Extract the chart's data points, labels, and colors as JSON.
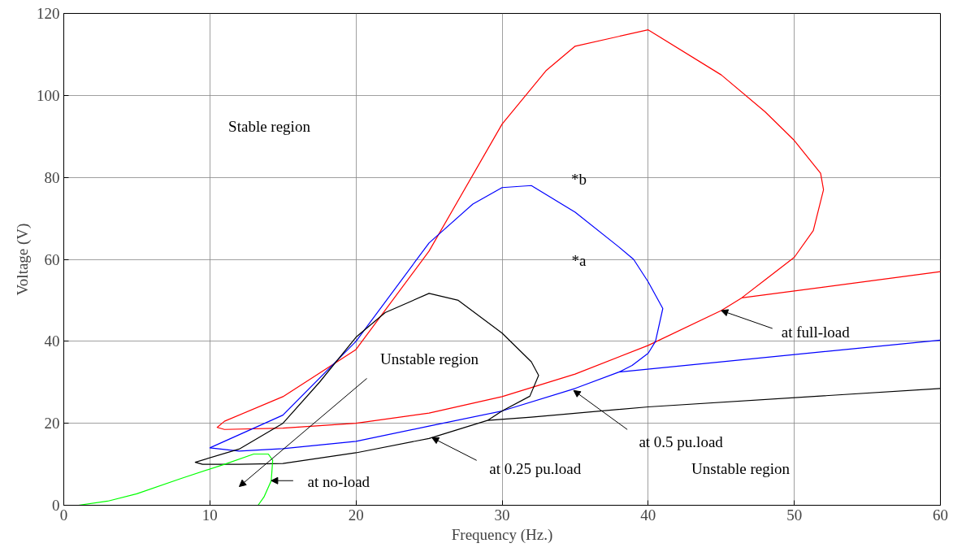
{
  "chart_data": {
    "type": "line",
    "xlabel": "Frequency (Hz.)",
    "ylabel": "Voltage (V)",
    "xlim": [
      0,
      60
    ],
    "ylim": [
      0,
      120
    ],
    "xticks": [
      0,
      10,
      20,
      30,
      40,
      50,
      60
    ],
    "yticks": [
      0,
      20,
      40,
      60,
      80,
      100,
      120
    ],
    "grid": true,
    "line_style": "solid",
    "marker": "none",
    "series": [
      {
        "color": "#ff0000",
        "x": [
          60,
          46.4,
          48,
          50,
          51.3,
          52,
          51.8,
          50,
          48,
          45,
          40,
          35,
          33,
          30,
          25,
          20,
          15,
          11,
          10.5,
          11,
          15,
          20,
          25,
          30,
          35,
          40,
          45,
          46.4
        ],
        "values": [
          57,
          50.6,
          55,
          60.5,
          67,
          77,
          81,
          89,
          96,
          105,
          116,
          112,
          106,
          93,
          62,
          38,
          26.5,
          20.5,
          19,
          18.5,
          18.8,
          20,
          22.5,
          26.5,
          32,
          39,
          47.5,
          50.6
        ]
      },
      {
        "color": "#0000ff",
        "x": [
          60,
          38,
          35,
          30,
          25,
          20,
          15,
          12,
          10,
          15,
          20,
          25,
          28,
          30,
          32,
          35,
          38,
          39,
          40,
          41,
          40.5,
          40,
          38.9,
          38
        ],
        "values": [
          40.3,
          32.5,
          28.5,
          23,
          19.3,
          15.6,
          13.8,
          13.2,
          14,
          22,
          40,
          64,
          73.5,
          77.5,
          78,
          71.5,
          63,
          60,
          54.5,
          48,
          40,
          37.1,
          34.1,
          32.5
        ]
      },
      {
        "color": "#000000",
        "x": [
          60,
          40,
          32,
          29,
          25,
          20,
          15,
          12,
          9.5,
          9,
          12,
          15,
          17.5,
          20,
          22,
          25,
          27,
          30,
          32,
          32.5,
          31.9,
          30,
          29
        ],
        "values": [
          28.5,
          24,
          21.5,
          20.7,
          16.3,
          12.8,
          10.2,
          10,
          10,
          10.5,
          13.7,
          20,
          30,
          41,
          47,
          51.7,
          50,
          42,
          35,
          31.7,
          26.6,
          23,
          20.7
        ]
      },
      {
        "color": "#00ff00",
        "x": [
          1,
          3,
          5,
          8,
          11,
          13,
          14,
          14.3,
          14.2,
          13.7,
          13.3
        ],
        "values": [
          0,
          1,
          2.8,
          6.5,
          10,
          12.5,
          12.5,
          11,
          6,
          2,
          0
        ]
      }
    ],
    "annotations": [
      "Stable region",
      "*b",
      "*a",
      "Unstable region",
      {
        "text": "at no-load",
        "x": 14.2,
        "y": 6
      },
      {
        "text": "at 0.25 pu.load",
        "x": 25.2,
        "y": 16.5
      },
      {
        "text": "at 0.5 pu.load",
        "x": 34.9,
        "y": 28
      },
      {
        "text": "at full-load",
        "x": 45,
        "y": 47.5
      },
      "Unstable region"
    ]
  }
}
